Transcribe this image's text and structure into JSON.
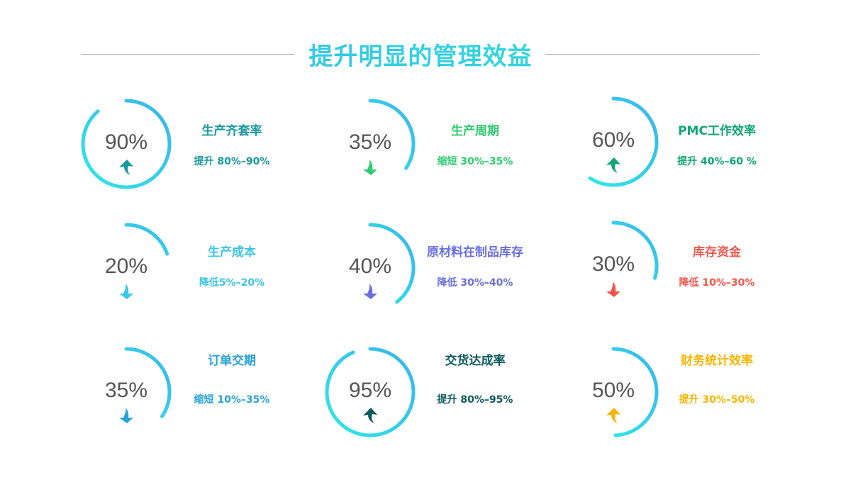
{
  "title": "提升明显的管理效益",
  "ring_gradient": [
    "#3ab4ec",
    "#2ee8e6"
  ],
  "items": [
    {
      "value": "90%",
      "percent": 90,
      "label": "生产齐套率",
      "detail": "提升 80%–90%",
      "direction": "up",
      "color": "#18999f"
    },
    {
      "value": "35%",
      "percent": 35,
      "label": "生产周期",
      "detail": "缩短 30%–35%",
      "direction": "down",
      "color": "#2dcc6e"
    },
    {
      "value": "60%",
      "percent": 60,
      "label": "PMC工作效率",
      "detail": "提升 40%–60 %",
      "direction": "up",
      "color": "#0fa673"
    },
    {
      "value": "20%",
      "percent": 20,
      "label": "生产成本",
      "detail": "降低5%–20%",
      "direction": "down",
      "color": "#3ac6e6"
    },
    {
      "value": "40%",
      "percent": 40,
      "label": "原材料在制品库存",
      "detail": "降低 30%–40%",
      "direction": "down",
      "color": "#6a6fe2"
    },
    {
      "value": "30%",
      "percent": 30,
      "label": "库存资金",
      "detail": "降低 10%–30%",
      "direction": "down",
      "color": "#f5554a"
    },
    {
      "value": "35%",
      "percent": 35,
      "label": "订单交期",
      "detail": "缩短 10%–35%",
      "direction": "down",
      "color": "#27a3d9"
    },
    {
      "value": "95%",
      "percent": 95,
      "label": "交货达成率",
      "detail": "提升 80%–95%",
      "direction": "up",
      "color": "#0d5b5d"
    },
    {
      "value": "50%",
      "percent": 50,
      "label": "财务统计效率",
      "detail": "提升 30%–50%",
      "direction": "up",
      "color": "#f7b500"
    }
  ]
}
